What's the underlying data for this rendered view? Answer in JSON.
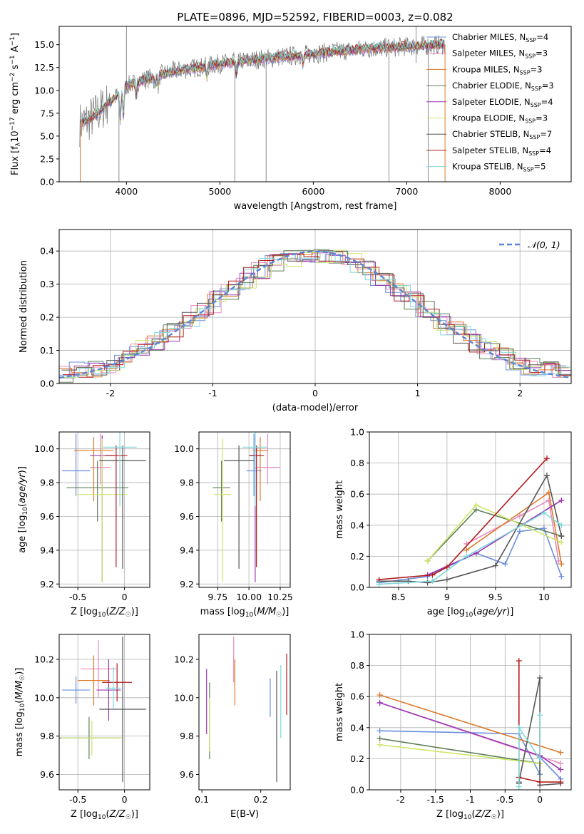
{
  "figure_title": "PLATE=0896, MJD=52592, FIBERID=0003, z=0.082",
  "colors": {
    "Chabrier MILES": "#6a8fdc",
    "Salpeter MILES": "#e98ac0",
    "Kroupa MILES": "#dd7a2a",
    "Chabrier ELODIE": "#5f7f58",
    "Salpeter ELODIE": "#9a35b6",
    "Kroupa ELODIE": "#cce66a",
    "Chabrier STELIB": "#555555",
    "Salpeter STELIB": "#b31c1c",
    "Kroupa STELIB": "#7fd8db"
  },
  "chart_data": [
    {
      "id": "spectrum",
      "type": "line",
      "title": "PLATE=0896, MJD=52592, FIBERID=0003, z=0.082",
      "xlabel": "wavelength [Angstrom, rest frame]",
      "ylabel": "Flux [f_λ 10^-17 erg cm^-2 s^-1 A^-1]",
      "xlim": [
        3280,
        8760
      ],
      "ylim": [
        0,
        17
      ],
      "xticks": [
        4000,
        5000,
        6000,
        7000,
        8000
      ],
      "yticks": [
        0.0,
        2.5,
        5.0,
        7.5,
        10.0,
        12.5,
        15.0
      ],
      "data_continuum_x": [
        3500,
        3600,
        3700,
        3800,
        3900,
        4000,
        4200,
        4500,
        5000,
        5500,
        6000,
        6500,
        7000,
        7400
      ],
      "data_continuum_y": [
        6.3,
        6.8,
        7.6,
        8.6,
        9.4,
        10.5,
        11.2,
        12.1,
        12.9,
        13.5,
        14.0,
        14.5,
        14.8,
        15.0
      ],
      "legend_position": "right",
      "legend": [
        {
          "label": "Chabrier MILES, N_SSP=4",
          "color": "#6a8fdc"
        },
        {
          "label": "Salpeter MILES, N_SSP=3",
          "color": "#e98ac0"
        },
        {
          "label": "Kroupa MILES, N_SSP=3",
          "color": "#dd7a2a"
        },
        {
          "label": "Chabrier ELODIE, N_SSP=3",
          "color": "#5f7f58"
        },
        {
          "label": "Salpeter ELODIE, N_SSP=4",
          "color": "#9a35b6"
        },
        {
          "label": "Kroupa ELODIE, N_SSP=3",
          "color": "#cce66a"
        },
        {
          "label": "Chabrier STELIB, N_SSP=7",
          "color": "#555555"
        },
        {
          "label": "Salpeter STELIB, N_SSP=4",
          "color": "#b31c1c"
        },
        {
          "label": "Kroupa STELIB, N_SSP=5",
          "color": "#7fd8db"
        }
      ]
    },
    {
      "id": "residuals",
      "type": "line",
      "xlabel": "(data-model)/error",
      "ylabel": "Normed distribution",
      "xlim": [
        -2.5,
        2.5
      ],
      "ylim": [
        0,
        0.465
      ],
      "xticks": [
        -2,
        -1,
        0,
        1,
        2
      ],
      "yticks": [
        0.0,
        0.1,
        0.2,
        0.3,
        0.4
      ],
      "grid": true,
      "legend_position": "top-right",
      "legend_label": "N(0,1)",
      "gaussian": {
        "mean": 0,
        "sigma": 1,
        "color": "#5b86d3"
      }
    },
    {
      "id": "age_vs_z",
      "type": "scatter",
      "xlabel": "Z [log10(Z/Z☉)]",
      "ylabel": "age [log10(age/yr)]",
      "xlim": [
        -0.7,
        0.27
      ],
      "ylim": [
        9.18,
        10.1
      ],
      "xticks": [
        -0.5,
        0.0
      ],
      "yticks": [
        9.2,
        9.4,
        9.6,
        9.8,
        10.0
      ],
      "grid": true,
      "points": [
        {
          "model": "Chabrier MILES",
          "x": -0.52,
          "xerr": 0.15,
          "y": 9.87,
          "yerr": [
            0.15,
            0.22
          ]
        },
        {
          "model": "Salpeter MILES",
          "x": -0.26,
          "xerr": 0.11,
          "y": 9.89,
          "yerr": [
            0.1,
            0.2
          ]
        },
        {
          "model": "Kroupa MILES",
          "x": -0.33,
          "xerr": 0.21,
          "y": 9.99,
          "yerr": [
            0.3,
            0.08
          ]
        },
        {
          "model": "Chabrier ELODIE",
          "x": -0.29,
          "xerr": 0.33,
          "y": 9.77,
          "yerr": [
            0.2,
            0.16
          ]
        },
        {
          "model": "Salpeter ELODIE",
          "x": -0.24,
          "xerr": 0.13,
          "y": 9.96,
          "yerr": [
            0.75,
            0.12
          ]
        },
        {
          "model": "Kroupa ELODIE",
          "x": -0.24,
          "xerr": 0.27,
          "y": 9.73,
          "yerr": [
            0.52,
            0.33
          ]
        },
        {
          "model": "Chabrier STELIB",
          "x": -0.02,
          "xerr": 0.25,
          "y": 9.93,
          "yerr": [
            0.64,
            0.09
          ]
        },
        {
          "model": "Salpeter STELIB",
          "x": -0.09,
          "xerr": 0.12,
          "y": 9.96,
          "yerr": [
            0.66,
            0.06
          ]
        },
        {
          "model": "Kroupa STELIB",
          "x": -0.05,
          "xerr": 0.18,
          "y": 10.01,
          "yerr": [
            0.35,
            0.09
          ]
        }
      ]
    },
    {
      "id": "age_vs_mass",
      "type": "scatter",
      "xlabel": "mass [log10(M/M☉)]",
      "ylabel": "",
      "xlim": [
        9.6,
        10.33
      ],
      "ylim": [
        9.18,
        10.1
      ],
      "xticks": [
        9.75,
        10.0,
        10.25
      ],
      "xticklabels": [
        "9.75",
        "10.00",
        "10.25"
      ],
      "yticks": [
        9.2,
        9.4,
        9.6,
        9.8,
        10.0
      ],
      "grid": true,
      "points": [
        {
          "model": "Chabrier MILES",
          "x": 10.04,
          "xerr": 0.06,
          "y": 9.87,
          "yerr": [
            0.15,
            0.22
          ]
        },
        {
          "model": "Salpeter MILES",
          "x": 10.15,
          "xerr": 0.1,
          "y": 9.89,
          "yerr": [
            0.1,
            0.2
          ]
        },
        {
          "model": "Kroupa MILES",
          "x": 10.09,
          "xerr": 0.06,
          "y": 9.99,
          "yerr": [
            0.3,
            0.08
          ]
        },
        {
          "model": "Chabrier ELODIE",
          "x": 9.78,
          "xerr": 0.07,
          "y": 9.77,
          "yerr": [
            0.2,
            0.16
          ]
        },
        {
          "model": "Salpeter ELODIE",
          "x": 10.05,
          "xerr": 0.04,
          "y": 9.96,
          "yerr": [
            0.75,
            0.12
          ]
        },
        {
          "model": "Kroupa ELODIE",
          "x": 9.79,
          "xerr": 0.07,
          "y": 9.73,
          "yerr": [
            0.52,
            0.33
          ]
        },
        {
          "model": "Chabrier STELIB",
          "x": 9.92,
          "xerr": 0.12,
          "y": 9.93,
          "yerr": [
            0.64,
            0.09
          ]
        },
        {
          "model": "Salpeter STELIB",
          "x": 10.06,
          "xerr": 0.06,
          "y": 9.96,
          "yerr": [
            0.66,
            0.06
          ]
        },
        {
          "model": "Kroupa STELIB",
          "x": 10.05,
          "xerr": 0.1,
          "y": 10.01,
          "yerr": [
            0.35,
            0.09
          ]
        }
      ]
    },
    {
      "id": "weight_vs_age",
      "type": "line",
      "xlabel": "age [log10(age/yr)]",
      "ylabel": "mass weight",
      "xlim": [
        8.2,
        10.28
      ],
      "ylim": [
        0,
        1
      ],
      "xticks": [
        8.5,
        9.0,
        9.5,
        10.0
      ],
      "yticks": [
        0.0,
        0.2,
        0.4,
        0.6,
        0.8,
        1.0
      ],
      "grid": true,
      "series": [
        {
          "model": "Chabrier MILES",
          "x": [
            8.3,
            8.8,
            9.3,
            9.6,
            9.75,
            10.0,
            10.18
          ],
          "y": [
            0.03,
            0.07,
            0.22,
            0.15,
            0.36,
            0.38,
            0.07
          ]
        },
        {
          "model": "Salpeter MILES",
          "x": [
            9.2,
            9.75,
            10.05,
            10.15
          ],
          "y": [
            0.28,
            0.46,
            0.56,
            0.17
          ]
        },
        {
          "model": "Kroupa MILES",
          "x": [
            9.2,
            10.05,
            10.18
          ],
          "y": [
            0.24,
            0.61,
            0.15
          ]
        },
        {
          "model": "Chabrier ELODIE",
          "x": [
            8.8,
            9.3,
            10.18
          ],
          "y": [
            0.17,
            0.5,
            0.33
          ]
        },
        {
          "model": "Salpeter ELODIE",
          "x": [
            8.8,
            9.3,
            10.18
          ],
          "y": [
            0.08,
            0.22,
            0.56
          ]
        },
        {
          "model": "Kroupa ELODIE",
          "x": [
            8.8,
            9.3,
            10.18
          ],
          "y": [
            0.17,
            0.53,
            0.29
          ]
        },
        {
          "model": "Chabrier STELIB",
          "x": [
            8.3,
            8.6,
            8.8,
            9.0,
            9.5,
            10.03,
            10.18
          ],
          "y": [
            0.04,
            0.04,
            0.03,
            0.05,
            0.14,
            0.72,
            0.33
          ]
        },
        {
          "model": "Salpeter STELIB",
          "x": [
            8.3,
            8.85,
            9.0,
            10.03
          ],
          "y": [
            0.05,
            0.08,
            0.13,
            0.83
          ]
        },
        {
          "model": "Kroupa STELIB",
          "x": [
            8.3,
            8.85,
            9.2,
            10.0,
            10.18
          ],
          "y": [
            0.02,
            0.04,
            0.2,
            0.48,
            0.4
          ]
        }
      ]
    },
    {
      "id": "mass_vs_z",
      "type": "scatter",
      "xlabel": "Z [log10(Z/Z☉)]",
      "ylabel": "mass [log10(M/M☉)]",
      "xlim": [
        -0.7,
        0.27
      ],
      "ylim": [
        9.52,
        10.33
      ],
      "xticks": [
        -0.5,
        0.0
      ],
      "yticks": [
        9.6,
        9.8,
        10.0,
        10.2
      ],
      "grid": true,
      "points": [
        {
          "model": "Chabrier MILES",
          "x": -0.52,
          "xerr": 0.15,
          "y": 10.04,
          "yerr": 0.07
        },
        {
          "model": "Salpeter MILES",
          "x": -0.28,
          "xerr": 0.19,
          "y": 10.15,
          "yerr": 0.15
        },
        {
          "model": "Kroupa MILES",
          "x": -0.33,
          "xerr": 0.17,
          "y": 10.09,
          "yerr": 0.13
        },
        {
          "model": "Chabrier ELODIE",
          "x": -0.38,
          "xerr": 0.34,
          "y": 9.79,
          "yerr": 0.11
        },
        {
          "model": "Salpeter ELODIE",
          "x": -0.17,
          "xerr": 0.13,
          "y": 10.04,
          "yerr": 0.16
        },
        {
          "model": "Kroupa ELODIE",
          "x": -0.35,
          "xerr": 0.33,
          "y": 9.79,
          "yerr": 0.09
        },
        {
          "model": "Chabrier STELIB",
          "x": -0.02,
          "xerr": 0.25,
          "y": 9.94,
          "yerr": 0.38
        },
        {
          "model": "Salpeter STELIB",
          "x": -0.08,
          "xerr": 0.16,
          "y": 10.08,
          "yerr": 0.1
        },
        {
          "model": "Kroupa STELIB",
          "x": -0.12,
          "xerr": 0.08,
          "y": 10.05,
          "yerr": 0.11
        }
      ]
    },
    {
      "id": "mass_vs_ebv",
      "type": "scatter",
      "xlabel": "E(B-V)",
      "ylabel": "",
      "xlim": [
        0.095,
        0.25
      ],
      "ylim": [
        9.52,
        10.33
      ],
      "xticks": [
        0.1,
        0.2
      ],
      "yticks": [
        9.6,
        9.8,
        10.0,
        10.2
      ],
      "grid": false,
      "points": [
        {
          "model": "Chabrier MILES",
          "x": 0.216,
          "y": 10.0,
          "yerr": 0.1
        },
        {
          "model": "Salpeter MILES",
          "x": 0.154,
          "y": 10.2,
          "yerr": 0.12
        },
        {
          "model": "Kroupa MILES",
          "x": 0.156,
          "y": 10.08,
          "yerr": 0.12
        },
        {
          "model": "Chabrier ELODIE",
          "x": 0.113,
          "y": 9.88,
          "yerr": 0.2
        },
        {
          "model": "Salpeter ELODIE",
          "x": 0.108,
          "y": 9.98,
          "yerr": 0.17
        },
        {
          "model": "Kroupa ELODIE",
          "x": 0.113,
          "y": 9.86,
          "yerr": 0.14
        },
        {
          "model": "Chabrier STELIB",
          "x": 0.227,
          "y": 9.85,
          "yerr": 0.29
        },
        {
          "model": "Salpeter STELIB",
          "x": 0.244,
          "y": 10.07,
          "yerr": 0.16
        },
        {
          "model": "Kroupa STELIB",
          "x": 0.234,
          "y": 9.98,
          "yerr": 0.19
        }
      ]
    },
    {
      "id": "weight_vs_z",
      "type": "line",
      "xlabel": "Z [log10(Z/Z☉)]",
      "ylabel": "mass weight",
      "xlim": [
        -2.45,
        0.45
      ],
      "ylim": [
        0,
        1
      ],
      "xticks": [
        -2.0,
        -1.5,
        -1.0,
        -0.5,
        0.0
      ],
      "yticks": [
        0.0,
        0.2,
        0.4,
        0.6,
        0.8,
        1.0
      ],
      "grid": true,
      "series": [
        {
          "model": "Chabrier MILES",
          "x": [
            -2.3,
            -0.3,
            0.0,
            0.0,
            0.3
          ],
          "y": [
            0.38,
            0.36,
            0.1,
            0.21,
            0.07
          ]
        },
        {
          "model": "Salpeter MILES",
          "x": [
            -2.3,
            0.3
          ],
          "y": [
            0.56,
            0.17
          ]
        },
        {
          "model": "Kroupa MILES",
          "x": [
            -2.3,
            0.3
          ],
          "y": [
            0.61,
            0.24
          ]
        },
        {
          "model": "Chabrier ELODIE",
          "x": [
            -2.3,
            0.0
          ],
          "y": [
            0.33,
            0.17
          ]
        },
        {
          "model": "Salpeter ELODIE",
          "x": [
            -2.3,
            0.0,
            0.3
          ],
          "y": [
            0.56,
            0.22,
            0.13
          ]
        },
        {
          "model": "Kroupa ELODIE",
          "x": [
            -2.3,
            0.0
          ],
          "y": [
            0.29,
            0.17
          ]
        },
        {
          "model": "Chabrier STELIB",
          "x": [
            -0.3,
            -0.3,
            0.0,
            0.0,
            0.3
          ],
          "y": [
            0.04,
            0.05,
            0.72,
            0.03,
            0.04
          ]
        },
        {
          "model": "Salpeter STELIB",
          "x": [
            -0.3,
            -0.3,
            0.0,
            0.3
          ],
          "y": [
            0.83,
            0.08,
            0.05,
            0.05
          ]
        },
        {
          "model": "Kroupa STELIB",
          "x": [
            -0.3,
            -0.3,
            0.0,
            0.0
          ],
          "y": [
            0.02,
            0.4,
            0.2,
            0.48
          ]
        }
      ]
    }
  ]
}
